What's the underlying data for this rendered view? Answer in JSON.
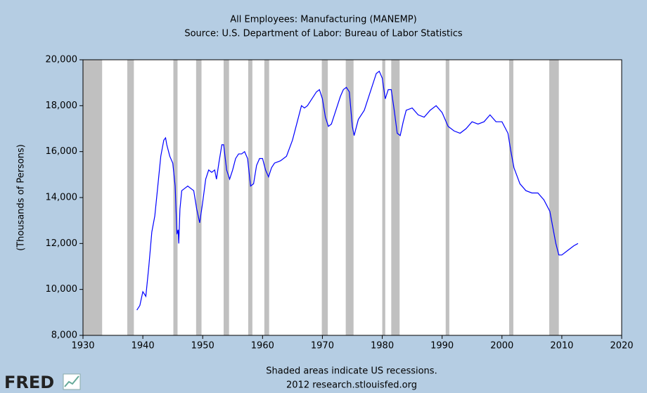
{
  "chart_data": {
    "type": "line",
    "title": "All Employees: Manufacturing (MANEMP)",
    "subtitle": "Source: U.S. Department of Labor: Bureau of Labor Statistics",
    "ylabel": "(Thousands of Persons)",
    "note": "Shaded areas indicate US recessions.",
    "credit": "2012 research.stlouisfed.org",
    "color": "#0000ff",
    "recession_color": "#c0c0c0",
    "xlim": [
      1930,
      2020
    ],
    "xticks": [
      1930,
      1940,
      1950,
      1960,
      1970,
      1980,
      1990,
      2000,
      2010,
      2020
    ],
    "ylim": [
      8000,
      20000
    ],
    "yticks": [
      {
        "value": 8000,
        "label": "8,000"
      },
      {
        "value": 10000,
        "label": "10,000"
      },
      {
        "value": 12000,
        "label": "12,000"
      },
      {
        "value": 14000,
        "label": "14,000"
      },
      {
        "value": 16000,
        "label": "16,000"
      },
      {
        "value": 18000,
        "label": "18,000"
      },
      {
        "value": 20000,
        "label": "20,000"
      }
    ],
    "recessions": [
      [
        1930,
        1933.2
      ],
      [
        1937.4,
        1938.5
      ],
      [
        1945.1,
        1945.8
      ],
      [
        1948.9,
        1949.8
      ],
      [
        1953.5,
        1954.4
      ],
      [
        1957.6,
        1958.3
      ],
      [
        1960.3,
        1961.1
      ],
      [
        1969.9,
        1970.9
      ],
      [
        1973.9,
        1975.2
      ],
      [
        1980.0,
        1980.5
      ],
      [
        1981.5,
        1982.9
      ],
      [
        1990.6,
        1991.2
      ],
      [
        2001.2,
        2001.9
      ],
      [
        2007.9,
        2009.5
      ]
    ],
    "x": [
      1939.0,
      1939.5,
      1940,
      1940.5,
      1941,
      1941.5,
      1942,
      1942.5,
      1943,
      1943.5,
      1943.8,
      1944,
      1944.5,
      1945,
      1945.4,
      1945.7,
      1945.9,
      1946,
      1946.2,
      1946.5,
      1947,
      1947.5,
      1948,
      1948.5,
      1949,
      1949.5,
      1950,
      1950.5,
      1951,
      1951.5,
      1952,
      1952.3,
      1952.7,
      1953.2,
      1953.5,
      1954,
      1954.5,
      1955,
      1955.5,
      1956,
      1956.5,
      1957,
      1957.5,
      1958,
      1958.5,
      1959,
      1959.5,
      1960,
      1960.5,
      1961,
      1961.5,
      1962,
      1963,
      1964,
      1965,
      1966,
      1966.5,
      1967,
      1967.5,
      1968,
      1969,
      1969.5,
      1970,
      1970.5,
      1971,
      1971.5,
      1972,
      1973,
      1973.5,
      1974,
      1974.5,
      1975,
      1975.3,
      1976,
      1977,
      1978,
      1979,
      1979.5,
      1980,
      1980.5,
      1981,
      1981.5,
      1982,
      1982.5,
      1983,
      1983.5,
      1984,
      1985,
      1986,
      1987,
      1988,
      1989,
      1990,
      1991,
      1992,
      1993,
      1994,
      1995,
      1996,
      1997,
      1998,
      1999,
      2000,
      2001,
      2001.5,
      2002,
      2003,
      2004,
      2005,
      2006,
      2007,
      2008,
      2009,
      2009.5,
      2010,
      2011,
      2012,
      2012.7
    ],
    "values": [
      9100,
      9300,
      9900,
      9700,
      11000,
      12500,
      13200,
      14500,
      15800,
      16500,
      16600,
      16300,
      15800,
      15500,
      14500,
      12400,
      12600,
      12000,
      13500,
      14300,
      14400,
      14500,
      14400,
      14300,
      13500,
      12900,
      13800,
      14800,
      15200,
      15100,
      15200,
      14800,
      15500,
      16300,
      16300,
      15200,
      14800,
      15200,
      15700,
      15900,
      15900,
      16000,
      15700,
      14500,
      14600,
      15400,
      15700,
      15700,
      15200,
      14900,
      15300,
      15500,
      15600,
      15800,
      16500,
      17500,
      18000,
      17900,
      18000,
      18200,
      18600,
      18700,
      18300,
      17500,
      17100,
      17200,
      17600,
      18400,
      18700,
      18800,
      18600,
      17100,
      16700,
      17400,
      17800,
      18600,
      19400,
      19500,
      19200,
      18300,
      18700,
      18700,
      17800,
      16800,
      16700,
      17300,
      17800,
      17900,
      17600,
      17500,
      17800,
      18000,
      17700,
      17100,
      16900,
      16800,
      17000,
      17300,
      17200,
      17300,
      17600,
      17300,
      17300,
      16800,
      16000,
      15300,
      14600,
      14300,
      14200,
      14200,
      13900,
      13400,
      12000,
      11500,
      11500,
      11700,
      11900,
      12000
    ]
  },
  "logo": "FRED"
}
